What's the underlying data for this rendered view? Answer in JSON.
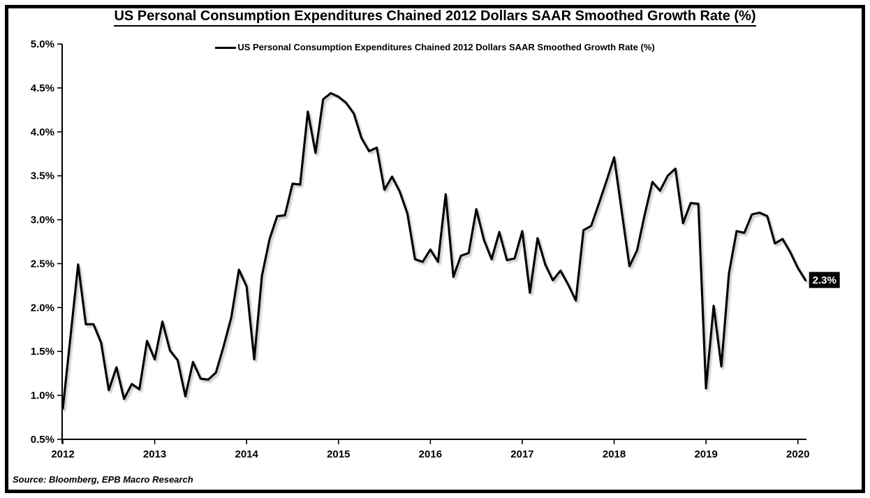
{
  "title": "US Personal Consumption Expenditures Chained 2012 Dollars SAAR Smoothed Growth Rate (%)",
  "legend": {
    "label": "US Personal Consumption Expenditures Chained 2012 Dollars SAAR Smoothed Growth Rate (%)"
  },
  "source": "Source: Bloomberg, EPB Macro Research",
  "colors": {
    "line": "#000000",
    "background": "#ffffff",
    "axis": "#000000",
    "end_label_bg": "#000000",
    "end_label_text": "#ffffff"
  },
  "chart_data": {
    "type": "line",
    "title": "US Personal Consumption Expenditures Chained 2012 Dollars SAAR Smoothed Growth Rate (%)",
    "frequency": "monthly",
    "x_start": "2012-01",
    "x_end": "2020-02",
    "x_tick_labels": [
      "2012",
      "2013",
      "2014",
      "2015",
      "2016",
      "2017",
      "2018",
      "2019",
      "2020"
    ],
    "y_tick_labels": [
      "5.0%",
      "4.5%",
      "4.0%",
      "3.5%",
      "3.0%",
      "2.5%",
      "2.0%",
      "1.5%",
      "1.0%",
      "0.5%"
    ],
    "ylim": [
      0.5,
      5.0
    ],
    "grid": false,
    "legend_position": "top-center",
    "last_value_label": "2.3%",
    "series": [
      {
        "name": "US Personal Consumption Expenditures Chained 2012 Dollars SAAR Smoothed Growth Rate (%)",
        "values": [
          0.85,
          1.67,
          2.49,
          1.81,
          1.81,
          1.6,
          1.06,
          1.32,
          0.96,
          1.13,
          1.07,
          1.62,
          1.41,
          1.84,
          1.51,
          1.4,
          0.99,
          1.38,
          1.19,
          1.18,
          1.26,
          1.56,
          1.89,
          2.43,
          2.24,
          1.41,
          2.36,
          2.78,
          3.04,
          3.05,
          3.41,
          3.4,
          4.23,
          3.76,
          4.37,
          4.44,
          4.4,
          4.33,
          4.21,
          3.93,
          3.78,
          3.82,
          3.34,
          3.49,
          3.32,
          3.07,
          2.55,
          2.52,
          2.66,
          2.52,
          3.29,
          2.35,
          2.59,
          2.62,
          3.12,
          2.77,
          2.55,
          2.86,
          2.54,
          2.56,
          2.87,
          2.17,
          2.79,
          2.49,
          2.31,
          2.42,
          2.26,
          2.08,
          2.88,
          2.93,
          3.18,
          3.44,
          3.71,
          3.09,
          2.47,
          2.65,
          3.06,
          3.43,
          3.33,
          3.5,
          3.58,
          2.96,
          3.19,
          3.18,
          1.08,
          2.02,
          1.33,
          2.39,
          2.87,
          2.85,
          3.06,
          3.08,
          3.04,
          2.73,
          2.78,
          2.63,
          2.45,
          2.31
        ]
      }
    ]
  }
}
